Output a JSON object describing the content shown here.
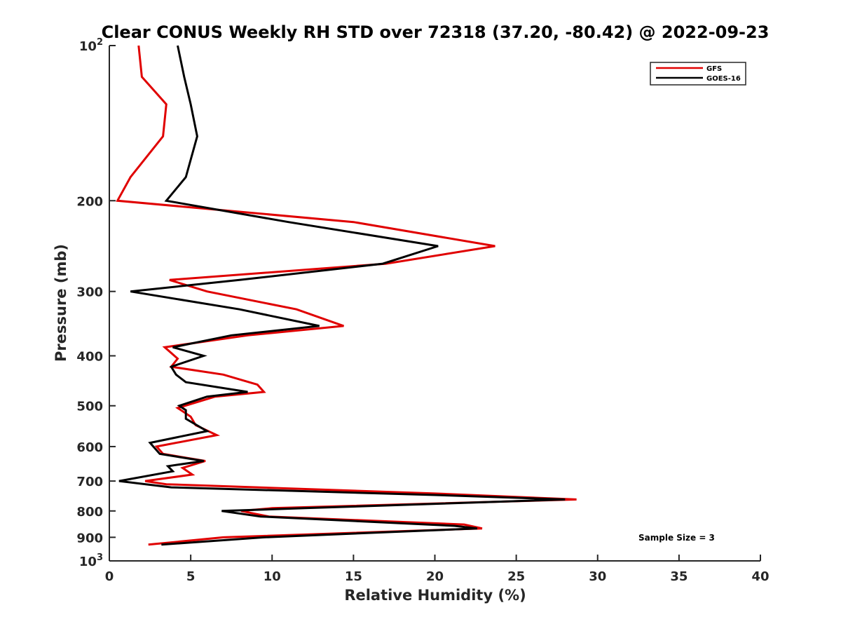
{
  "chart_data": {
    "type": "line",
    "title": "Clear CONUS Weekly RH STD over 72318 (37.20, -80.42) @ 2022-09-23",
    "xlabel": "Relative Humidity (%)",
    "ylabel": "Pressure (mb)",
    "xlim": [
      0,
      40
    ],
    "ylim": [
      100,
      1000
    ],
    "yscale": "log",
    "y_reversed": true,
    "xticks": [
      0,
      5,
      10,
      15,
      20,
      25,
      30,
      35,
      40
    ],
    "xtick_labels": [
      "0",
      "5",
      "10",
      "15",
      "20",
      "25",
      "30",
      "35",
      "40"
    ],
    "yticks": [
      100,
      200,
      300,
      400,
      500,
      600,
      700,
      800,
      900,
      1000
    ],
    "ytick_labels": [
      {
        "base": "10",
        "exp": "2"
      },
      {
        "base": "200",
        "exp": ""
      },
      {
        "base": "300",
        "exp": ""
      },
      {
        "base": "400",
        "exp": ""
      },
      {
        "base": "500",
        "exp": ""
      },
      {
        "base": "600",
        "exp": ""
      },
      {
        "base": "700",
        "exp": ""
      },
      {
        "base": "800",
        "exp": ""
      },
      {
        "base": "900",
        "exp": ""
      },
      {
        "base": "10",
        "exp": "3"
      }
    ],
    "grid": false,
    "legend_position": "top-right",
    "annotation": "Sample Size = 3",
    "series": [
      {
        "name": "GFS",
        "color": "#e00000",
        "points": [
          [
            1.8,
            100
          ],
          [
            2.0,
            115
          ],
          [
            3.5,
            130
          ],
          [
            3.3,
            150
          ],
          [
            1.3,
            180
          ],
          [
            0.5,
            200
          ],
          [
            15.0,
            220
          ],
          [
            23.7,
            245
          ],
          [
            17.0,
            265
          ],
          [
            3.7,
            285
          ],
          [
            6.0,
            300
          ],
          [
            11.5,
            325
          ],
          [
            14.4,
            350
          ],
          [
            8.5,
            365
          ],
          [
            3.4,
            385
          ],
          [
            4.2,
            405
          ],
          [
            3.8,
            420
          ],
          [
            7.0,
            435
          ],
          [
            9.1,
            455
          ],
          [
            9.5,
            470
          ],
          [
            6.5,
            480
          ],
          [
            4.2,
            505
          ],
          [
            5.0,
            525
          ],
          [
            5.3,
            545
          ],
          [
            6.6,
            570
          ],
          [
            2.9,
            600
          ],
          [
            3.3,
            620
          ],
          [
            5.9,
            640
          ],
          [
            4.5,
            660
          ],
          [
            5.1,
            680
          ],
          [
            2.2,
            700
          ],
          [
            3.5,
            710
          ],
          [
            20.0,
            740
          ],
          [
            28.7,
            760
          ],
          [
            10.0,
            790
          ],
          [
            8.1,
            800
          ],
          [
            9.8,
            820
          ],
          [
            21.8,
            850
          ],
          [
            22.9,
            865
          ],
          [
            7.0,
            900
          ],
          [
            2.4,
            930
          ]
        ]
      },
      {
        "name": "GOES-16",
        "color": "#000000",
        "points": [
          [
            4.2,
            100
          ],
          [
            4.6,
            115
          ],
          [
            5.0,
            130
          ],
          [
            5.4,
            150
          ],
          [
            4.7,
            180
          ],
          [
            3.5,
            200
          ],
          [
            11.0,
            220
          ],
          [
            20.2,
            245
          ],
          [
            16.8,
            265
          ],
          [
            8.0,
            285
          ],
          [
            1.3,
            300
          ],
          [
            8.0,
            325
          ],
          [
            12.9,
            350
          ],
          [
            7.5,
            365
          ],
          [
            3.9,
            385
          ],
          [
            5.8,
            400
          ],
          [
            3.8,
            420
          ],
          [
            4.1,
            435
          ],
          [
            4.7,
            450
          ],
          [
            8.5,
            470
          ],
          [
            6.0,
            480
          ],
          [
            4.3,
            500
          ],
          [
            4.7,
            510
          ],
          [
            4.7,
            530
          ],
          [
            6.0,
            560
          ],
          [
            2.5,
            590
          ],
          [
            3.1,
            620
          ],
          [
            5.8,
            640
          ],
          [
            3.6,
            655
          ],
          [
            3.9,
            670
          ],
          [
            0.6,
            700
          ],
          [
            3.8,
            720
          ],
          [
            20.0,
            745
          ],
          [
            28.0,
            760
          ],
          [
            12.0,
            790
          ],
          [
            6.9,
            800
          ],
          [
            9.3,
            820
          ],
          [
            21.2,
            855
          ],
          [
            22.6,
            865
          ],
          [
            9.5,
            900
          ],
          [
            3.2,
            930
          ]
        ]
      }
    ]
  }
}
